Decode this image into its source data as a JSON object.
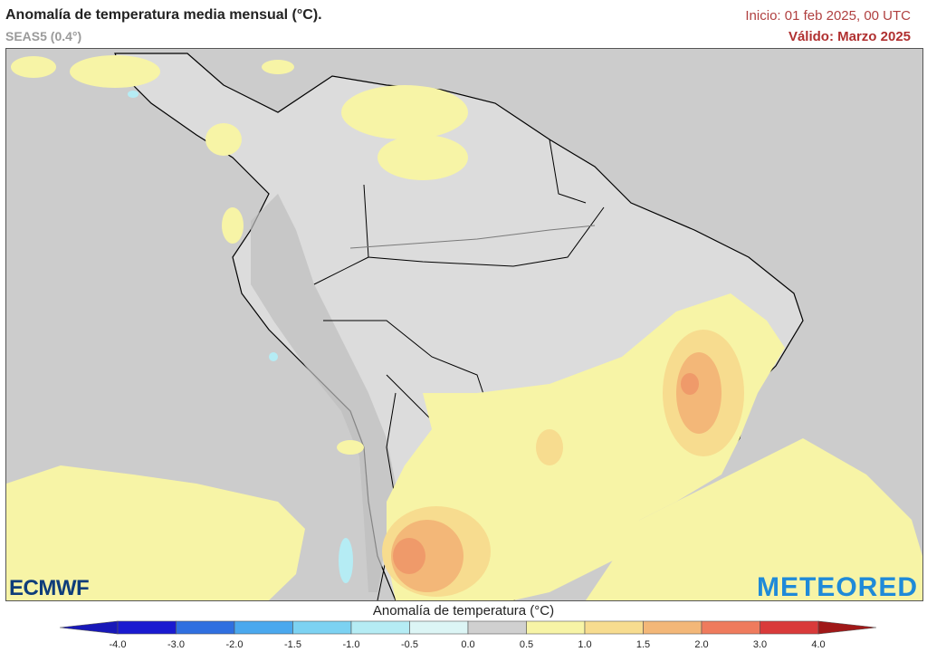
{
  "header": {
    "title": "Anomalía de temperatura media mensual (°C).",
    "subtitle": "SEAS5 (0.4°)",
    "init": "Inicio: 01 feb 2025, 00 UTC",
    "valid": "Válido: Marzo 2025"
  },
  "logos": {
    "left": "ECMWF",
    "right": "METEORED"
  },
  "legend": {
    "title": "Anomalía de temperatura (°C)",
    "ticks": [
      "-4.0",
      "-3.0",
      "-2.0",
      "-1.5",
      "-1.0",
      "-0.5",
      "0.0",
      "0.5",
      "1.0",
      "1.5",
      "2.0",
      "3.0",
      "4.0"
    ],
    "colors": [
      "#1a1ad0",
      "#2f6fe0",
      "#4aa8ee",
      "#7cd2f2",
      "#b5ecf4",
      "#dcf5f5",
      "#d0d0d0",
      "#f7f4a6",
      "#f7dc8f",
      "#f3b778",
      "#ef7b5d",
      "#d93a3a"
    ],
    "arrow_left": "#1818b8",
    "arrow_right": "#a01818"
  }
}
